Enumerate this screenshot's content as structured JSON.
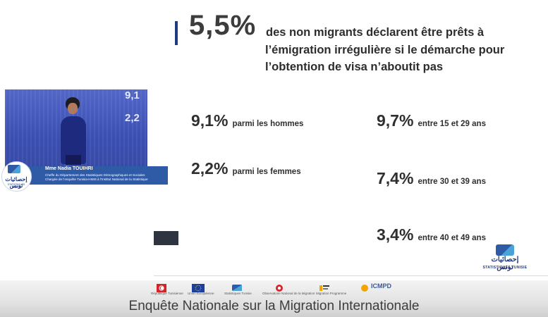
{
  "headline": {
    "percent": "5,5%",
    "line1": "des non migrants déclarent être prêts à",
    "line2": "l’émigration irrégulière si le démarche pour",
    "line3": "l’obtention de visa n’aboutit pas"
  },
  "stats_left": [
    {
      "pct": "9,1%",
      "label": "parmi les hommes"
    },
    {
      "pct": "2,2%",
      "label": "parmi les femmes"
    }
  ],
  "stats_right": [
    {
      "pct": "9,7%",
      "label": "entre 15 et 29 ans"
    },
    {
      "pct": "7,4%",
      "label": "entre 30 et 39 ans"
    },
    {
      "pct": "3,4%",
      "label": "entre 40 et 49 ans"
    }
  ],
  "inset": {
    "screen_digits": [
      "9,1",
      "2,2"
    ],
    "speaker_name": "Mme Nadia TOUIHRI",
    "speaker_role_1": "Cheffe du Département des Statistiques Démographiques et Sociales",
    "speaker_role_2": "Chargée de l’enquête Tunisia-HIMS à l’Institut National de la Statistique",
    "badge_ar": "إحصائيات تونس",
    "badge_fr": "STATISTIQUES TUNISIE"
  },
  "logo": {
    "arabic": "إحصائيات تونس",
    "french": "STATISTIQUES TUNISIE"
  },
  "partners": [
    {
      "name": "République Tunisienne",
      "icon": "tunisia-flag-icon"
    },
    {
      "name": "Union Européenne",
      "icon": "eu-flag-icon"
    },
    {
      "name": "Statistiques Tunisie",
      "icon": "ins-logo-icon"
    },
    {
      "name": "Observatoire National de la Migration",
      "icon": "onm-logo-icon"
    },
    {
      "name": "Migration Programme",
      "icon": "migration-programme-icon"
    },
    {
      "name": "ICMPD",
      "icon": "icmpd-logo-icon"
    }
  ],
  "subtitle": "Enquête Nationale sur la Migration Internationale",
  "colors": {
    "accent": "#1f3b80",
    "lower_third": "#2f5aa6",
    "icmpd": "#f0a500"
  }
}
